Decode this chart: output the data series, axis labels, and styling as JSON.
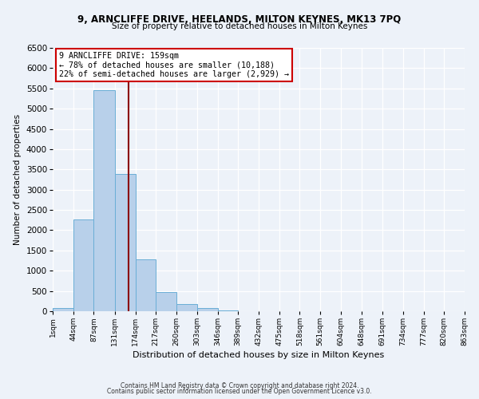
{
  "title1": "9, ARNCLIFFE DRIVE, HEELANDS, MILTON KEYNES, MK13 7PQ",
  "title2": "Size of property relative to detached houses in Milton Keynes",
  "xlabel": "Distribution of detached houses by size in Milton Keynes",
  "ylabel": "Number of detached properties",
  "footer1": "Contains HM Land Registry data © Crown copyright and database right 2024.",
  "footer2": "Contains public sector information licensed under the Open Government Licence v3.0.",
  "annotation_title": "9 ARNCLIFFE DRIVE: 159sqm",
  "annotation_line1": "← 78% of detached houses are smaller (10,188)",
  "annotation_line2": "22% of semi-detached houses are larger (2,929) →",
  "bar_color": "#b8d0ea",
  "bar_edge_color": "#6aaed6",
  "vline_color": "#8b0000",
  "vline_x": 159,
  "bin_edges": [
    1,
    44,
    87,
    131,
    174,
    217,
    260,
    303,
    346,
    389,
    432,
    475,
    518,
    561,
    604,
    648,
    691,
    734,
    777,
    820,
    863
  ],
  "bar_heights": [
    70,
    2270,
    5450,
    3380,
    1280,
    480,
    170,
    75,
    25,
    8,
    3,
    1,
    0,
    0,
    0,
    0,
    0,
    0,
    0,
    0
  ],
  "ylim": [
    0,
    6500
  ],
  "yticks": [
    0,
    500,
    1000,
    1500,
    2000,
    2500,
    3000,
    3500,
    4000,
    4500,
    5000,
    5500,
    6000,
    6500
  ],
  "xtick_labels": [
    "1sqm",
    "44sqm",
    "87sqm",
    "131sqm",
    "174sqm",
    "217sqm",
    "260sqm",
    "303sqm",
    "346sqm",
    "389sqm",
    "432sqm",
    "475sqm",
    "518sqm",
    "561sqm",
    "604sqm",
    "648sqm",
    "691sqm",
    "734sqm",
    "777sqm",
    "820sqm",
    "863sqm"
  ],
  "background_color": "#edf2f9",
  "grid_color": "#ffffff",
  "annotation_box_color": "#ffffff",
  "annotation_box_edge_color": "#cc0000"
}
